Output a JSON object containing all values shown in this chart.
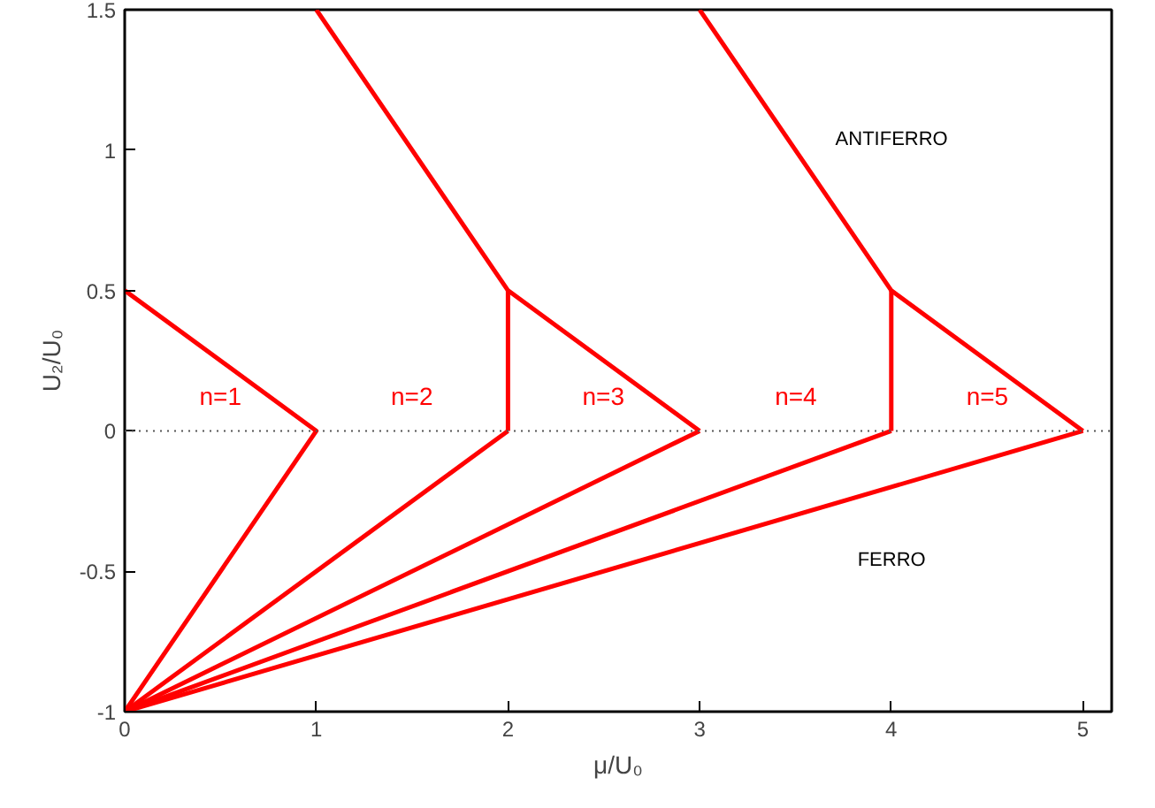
{
  "chart_data": {
    "type": "line",
    "xlabel": "μ/U₀",
    "ylabel": "U₂/U₀",
    "xlim": [
      0,
      5.15
    ],
    "ylim": [
      -1,
      1.5
    ],
    "xticks": [
      0,
      1,
      2,
      3,
      4,
      5
    ],
    "yticks": [
      -1,
      -0.5,
      0,
      0.5,
      1,
      1.5
    ],
    "grid": false,
    "marker": "none",
    "line_style": "solid",
    "series": [
      {
        "color": "#ff0000",
        "x": [
          0,
          1,
          0
        ],
        "values": [
          0.5,
          0,
          -1
        ]
      },
      {
        "color": "#ff0000",
        "x": [
          1,
          2,
          3
        ],
        "values": [
          1.5,
          0.5,
          0
        ]
      },
      {
        "color": "#ff0000",
        "x": [
          2,
          2
        ],
        "values": [
          0,
          0.5
        ]
      },
      {
        "color": "#ff0000",
        "x": [
          0,
          2
        ],
        "values": [
          -1,
          0
        ]
      },
      {
        "color": "#ff0000",
        "x": [
          0,
          3
        ],
        "values": [
          -1,
          0
        ]
      },
      {
        "color": "#ff0000",
        "x": [
          3,
          4,
          5
        ],
        "values": [
          1.5,
          0.5,
          0
        ]
      },
      {
        "color": "#ff0000",
        "x": [
          4,
          4
        ],
        "values": [
          0,
          0.5
        ]
      },
      {
        "color": "#ff0000",
        "x": [
          0,
          4
        ],
        "values": [
          -1,
          0
        ]
      },
      {
        "color": "#ff0000",
        "x": [
          0,
          5
        ],
        "values": [
          -1,
          0
        ]
      }
    ],
    "ref_lines": [
      {
        "axis": "y",
        "value": 0,
        "color": "#555555",
        "line_style": "dotted"
      }
    ],
    "annotations": [
      "n=1",
      "n=2",
      "n=3",
      "n=4",
      "n=5",
      "ANTIFERRO",
      "FERRO"
    ]
  }
}
